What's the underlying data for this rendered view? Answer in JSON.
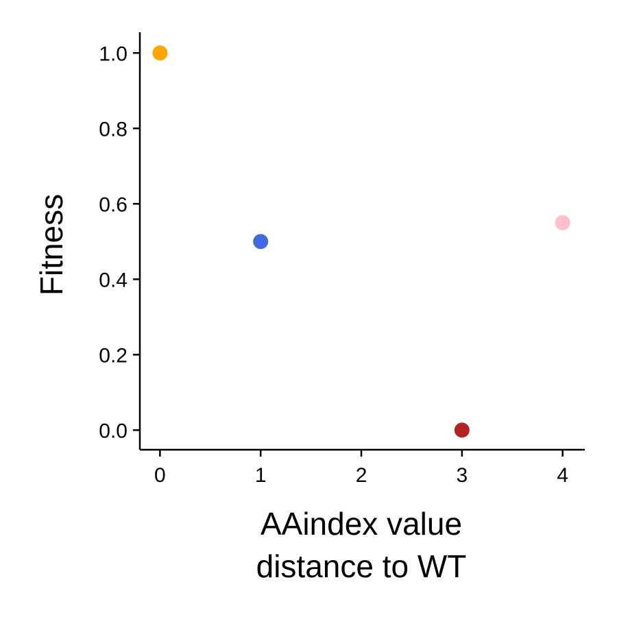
{
  "chart_data": {
    "type": "scatter",
    "title": "",
    "xlabel_lines": [
      "AAindex value",
      "distance to WT"
    ],
    "ylabel": "Fitness",
    "xlim": [
      -0.2,
      4.22
    ],
    "ylim": [
      -0.052,
      1.055
    ],
    "xticks": [
      0,
      1,
      2,
      3,
      4
    ],
    "yticks": [
      0.0,
      0.2,
      0.4,
      0.6,
      0.8,
      1.0
    ],
    "xtick_labels": [
      "0",
      "1",
      "2",
      "3",
      "4"
    ],
    "ytick_labels": [
      "0.0",
      "0.2",
      "0.4",
      "0.6",
      "0.8",
      "1.0"
    ],
    "grid": false,
    "points": [
      {
        "x": 0,
        "y": 1.0,
        "color": "#ffa500"
      },
      {
        "x": 1,
        "y": 0.5,
        "color": "#4169e1"
      },
      {
        "x": 3,
        "y": 0.0,
        "color": "#b22222"
      },
      {
        "x": 4,
        "y": 0.55,
        "color": "#ffc0cb"
      }
    ]
  }
}
